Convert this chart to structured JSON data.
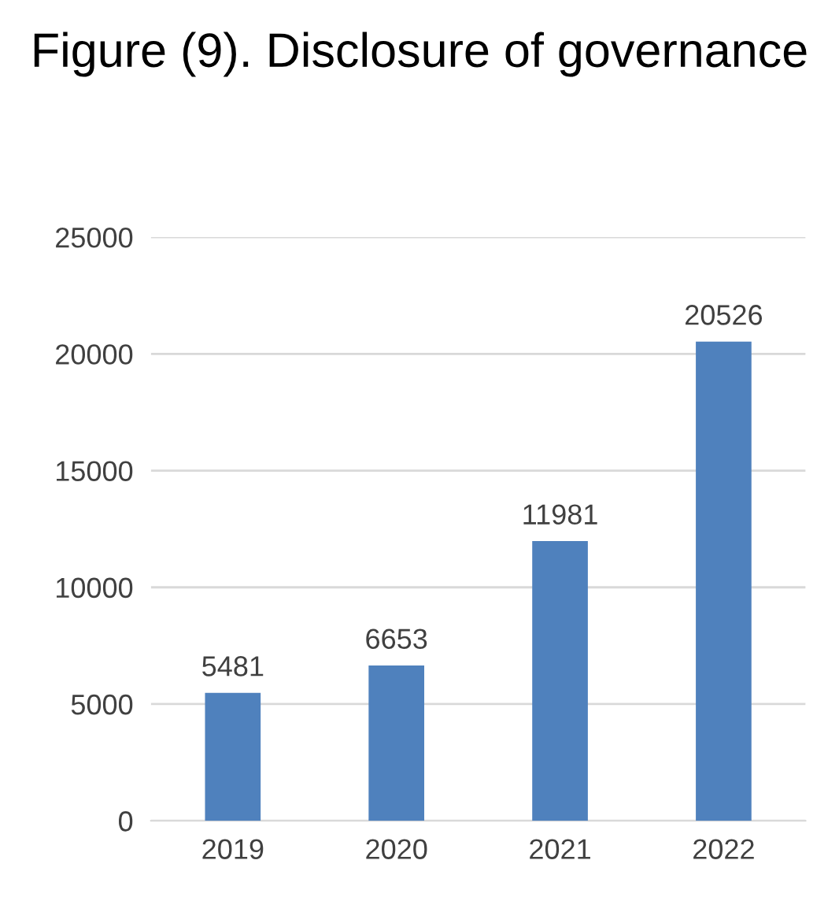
{
  "chart_data": {
    "type": "bar",
    "title": "Figure (9). Disclosure of governance",
    "categories": [
      "2019",
      "2020",
      "2021",
      "2022"
    ],
    "values": [
      5481,
      6653,
      11981,
      20526
    ],
    "color": "#4f81bd",
    "ylim": [
      0,
      25000
    ],
    "yticks": [
      0,
      5000,
      10000,
      15000,
      20000,
      25000
    ],
    "grid": "y",
    "data_labels": true
  }
}
